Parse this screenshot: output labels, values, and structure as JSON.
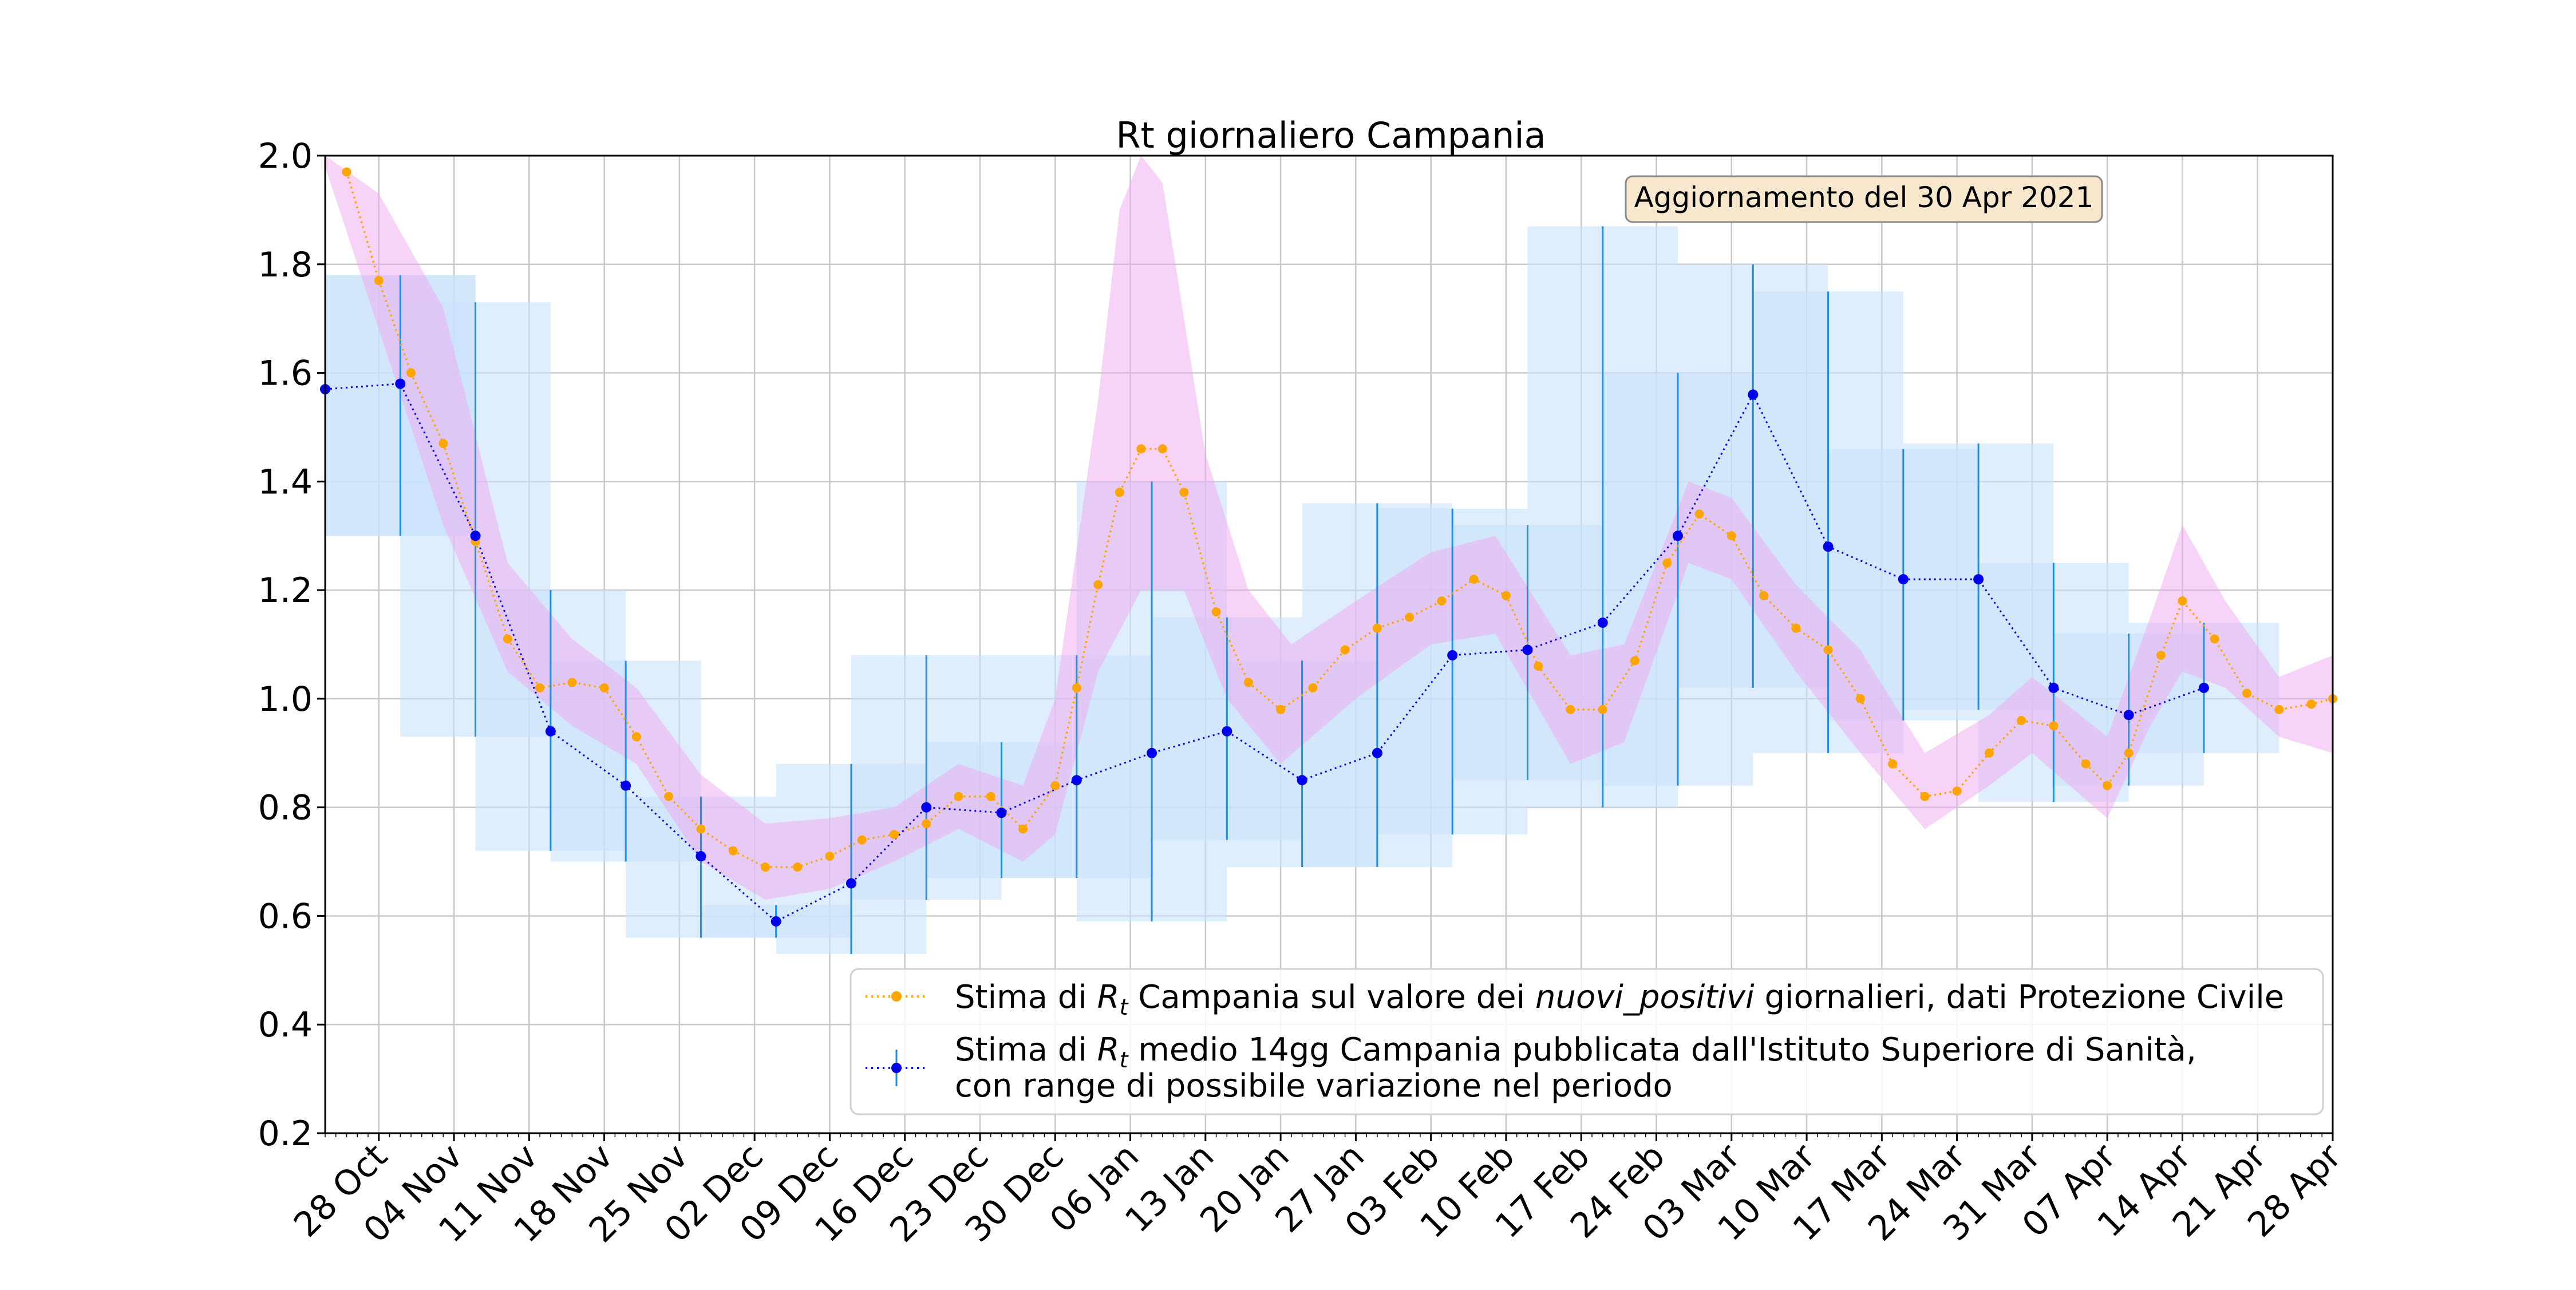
{
  "chart_data": {
    "type": "line",
    "title": "Rt giornaliero Campania",
    "annotation": "Aggiornamento del 30 Apr 2021",
    "xlabel": "",
    "ylabel": "",
    "x_range": [
      "2020-10-23",
      "2021-04-28"
    ],
    "ylim": [
      0.2,
      2.0
    ],
    "grid": true,
    "legend_position": "lower-right",
    "x_tick_labels": [
      "28 Oct",
      "04 Nov",
      "11 Nov",
      "18 Nov",
      "25 Nov",
      "02 Dec",
      "09 Dec",
      "16 Dec",
      "23 Dec",
      "30 Dec",
      "06 Jan",
      "13 Jan",
      "20 Jan",
      "27 Jan",
      "03 Feb",
      "10 Feb",
      "17 Feb",
      "24 Feb",
      "03 Mar",
      "10 Mar",
      "17 Mar",
      "24 Mar",
      "31 Mar",
      "07 Apr",
      "14 Apr",
      "21 Apr",
      "28 Apr"
    ],
    "x_tick_dates": [
      "2020-10-28",
      "2020-11-04",
      "2020-11-11",
      "2020-11-18",
      "2020-11-25",
      "2020-12-02",
      "2020-12-09",
      "2020-12-16",
      "2020-12-23",
      "2020-12-30",
      "2021-01-06",
      "2021-01-13",
      "2021-01-20",
      "2021-01-27",
      "2021-02-03",
      "2021-02-10",
      "2021-02-17",
      "2021-02-24",
      "2021-03-03",
      "2021-03-10",
      "2021-03-17",
      "2021-03-24",
      "2021-03-31",
      "2021-04-07",
      "2021-04-14",
      "2021-04-21",
      "2021-04-28"
    ],
    "y_tick_labels": [
      "0.2",
      "0.4",
      "0.6",
      "0.8",
      "1.0",
      "1.2",
      "1.4",
      "1.6",
      "1.8",
      "2.0"
    ],
    "colors": {
      "daily": "#ffa500",
      "band": "#f0a8f0",
      "iss": "#0000ee",
      "iss_range": "#1e8ee6",
      "iss_box": "#c9e2fb",
      "grid": "#c8c8c8",
      "note_bg": "#f6e7cd",
      "note_border": "#8a8a8a"
    },
    "series": [
      {
        "name": "daily",
        "legend": {
          "before": "Stima di ",
          "r": "R",
          "sub": "t",
          "mid": " Campania sul valore dei ",
          "italic": "nuovi_positivi",
          "after": " giornalieri, dati Protezione Civile"
        },
        "style": "dotted-line-with-markers",
        "points": [
          [
            "2020-10-25",
            1.97
          ],
          [
            "2020-10-28",
            1.77
          ],
          [
            "2020-10-31",
            1.6
          ],
          [
            "2020-11-03",
            1.47
          ],
          [
            "2020-11-06",
            1.29
          ],
          [
            "2020-11-09",
            1.11
          ],
          [
            "2020-11-12",
            1.02
          ],
          [
            "2020-11-15",
            1.03
          ],
          [
            "2020-11-18",
            1.02
          ],
          [
            "2020-11-21",
            0.93
          ],
          [
            "2020-11-24",
            0.82
          ],
          [
            "2020-11-27",
            0.76
          ],
          [
            "2020-11-30",
            0.72
          ],
          [
            "2020-12-03",
            0.69
          ],
          [
            "2020-12-06",
            0.69
          ],
          [
            "2020-12-09",
            0.71
          ],
          [
            "2020-12-12",
            0.74
          ],
          [
            "2020-12-15",
            0.75
          ],
          [
            "2020-12-18",
            0.77
          ],
          [
            "2020-12-21",
            0.82
          ],
          [
            "2020-12-24",
            0.82
          ],
          [
            "2020-12-27",
            0.76
          ],
          [
            "2020-12-30",
            0.84
          ],
          [
            "2021-01-01",
            1.02
          ],
          [
            "2021-01-03",
            1.21
          ],
          [
            "2021-01-05",
            1.38
          ],
          [
            "2021-01-07",
            1.46
          ],
          [
            "2021-01-09",
            1.46
          ],
          [
            "2021-01-11",
            1.38
          ],
          [
            "2021-01-14",
            1.16
          ],
          [
            "2021-01-17",
            1.03
          ],
          [
            "2021-01-20",
            0.98
          ],
          [
            "2021-01-23",
            1.02
          ],
          [
            "2021-01-26",
            1.09
          ],
          [
            "2021-01-29",
            1.13
          ],
          [
            "2021-02-01",
            1.15
          ],
          [
            "2021-02-04",
            1.18
          ],
          [
            "2021-02-07",
            1.22
          ],
          [
            "2021-02-10",
            1.19
          ],
          [
            "2021-02-13",
            1.06
          ],
          [
            "2021-02-16",
            0.98
          ],
          [
            "2021-02-19",
            0.98
          ],
          [
            "2021-02-22",
            1.07
          ],
          [
            "2021-02-25",
            1.25
          ],
          [
            "2021-02-28",
            1.34
          ],
          [
            "2021-03-03",
            1.3
          ],
          [
            "2021-03-06",
            1.19
          ],
          [
            "2021-03-09",
            1.13
          ],
          [
            "2021-03-12",
            1.09
          ],
          [
            "2021-03-15",
            1.0
          ],
          [
            "2021-03-18",
            0.88
          ],
          [
            "2021-03-21",
            0.82
          ],
          [
            "2021-03-24",
            0.83
          ],
          [
            "2021-03-27",
            0.9
          ],
          [
            "2021-03-30",
            0.96
          ],
          [
            "2021-04-02",
            0.95
          ],
          [
            "2021-04-05",
            0.88
          ],
          [
            "2021-04-07",
            0.84
          ],
          [
            "2021-04-09",
            0.9
          ],
          [
            "2021-04-12",
            1.08
          ],
          [
            "2021-04-14",
            1.18
          ],
          [
            "2021-04-17",
            1.11
          ],
          [
            "2021-04-20",
            1.01
          ],
          [
            "2021-04-23",
            0.98
          ],
          [
            "2021-04-26",
            0.99
          ],
          [
            "2021-04-28",
            1.0
          ]
        ],
        "band_upper": [
          [
            "2020-10-23",
            2.0
          ],
          [
            "2020-10-28",
            1.93
          ],
          [
            "2020-11-03",
            1.72
          ],
          [
            "2020-11-09",
            1.25
          ],
          [
            "2020-11-15",
            1.11
          ],
          [
            "2020-11-21",
            1.02
          ],
          [
            "2020-11-27",
            0.86
          ],
          [
            "2020-12-03",
            0.77
          ],
          [
            "2020-12-09",
            0.78
          ],
          [
            "2020-12-15",
            0.8
          ],
          [
            "2020-12-21",
            0.88
          ],
          [
            "2020-12-27",
            0.84
          ],
          [
            "2020-12-30",
            1.0
          ],
          [
            "2021-01-03",
            1.55
          ],
          [
            "2021-01-05",
            1.9
          ],
          [
            "2021-01-07",
            2.0
          ],
          [
            "2021-01-09",
            1.95
          ],
          [
            "2021-01-13",
            1.45
          ],
          [
            "2021-01-17",
            1.2
          ],
          [
            "2021-01-21",
            1.1
          ],
          [
            "2021-01-27",
            1.18
          ],
          [
            "2021-02-03",
            1.27
          ],
          [
            "2021-02-09",
            1.3
          ],
          [
            "2021-02-16",
            1.08
          ],
          [
            "2021-02-21",
            1.1
          ],
          [
            "2021-02-27",
            1.4
          ],
          [
            "2021-03-03",
            1.37
          ],
          [
            "2021-03-09",
            1.21
          ],
          [
            "2021-03-15",
            1.09
          ],
          [
            "2021-03-21",
            0.9
          ],
          [
            "2021-03-27",
            0.97
          ],
          [
            "2021-03-31",
            1.04
          ],
          [
            "2021-04-07",
            0.93
          ],
          [
            "2021-04-11",
            1.15
          ],
          [
            "2021-04-14",
            1.32
          ],
          [
            "2021-04-18",
            1.18
          ],
          [
            "2021-04-23",
            1.04
          ],
          [
            "2021-04-28",
            1.08
          ]
        ],
        "band_lower": [
          [
            "2020-10-23",
            1.98
          ],
          [
            "2020-10-28",
            1.68
          ],
          [
            "2020-11-03",
            1.32
          ],
          [
            "2020-11-09",
            1.05
          ],
          [
            "2020-11-15",
            0.95
          ],
          [
            "2020-11-21",
            0.88
          ],
          [
            "2020-11-27",
            0.7
          ],
          [
            "2020-12-03",
            0.63
          ],
          [
            "2020-12-09",
            0.65
          ],
          [
            "2020-12-15",
            0.7
          ],
          [
            "2020-12-21",
            0.76
          ],
          [
            "2020-12-27",
            0.7
          ],
          [
            "2020-12-30",
            0.75
          ],
          [
            "2021-01-03",
            1.05
          ],
          [
            "2021-01-07",
            1.2
          ],
          [
            "2021-01-11",
            1.2
          ],
          [
            "2021-01-15",
            1.0
          ],
          [
            "2021-01-20",
            0.88
          ],
          [
            "2021-01-27",
            1.0
          ],
          [
            "2021-02-03",
            1.1
          ],
          [
            "2021-02-09",
            1.12
          ],
          [
            "2021-02-16",
            0.88
          ],
          [
            "2021-02-21",
            0.92
          ],
          [
            "2021-02-27",
            1.25
          ],
          [
            "2021-03-03",
            1.22
          ],
          [
            "2021-03-09",
            1.05
          ],
          [
            "2021-03-15",
            0.9
          ],
          [
            "2021-03-21",
            0.76
          ],
          [
            "2021-03-27",
            0.84
          ],
          [
            "2021-03-31",
            0.9
          ],
          [
            "2021-04-07",
            0.78
          ],
          [
            "2021-04-11",
            0.95
          ],
          [
            "2021-04-14",
            1.05
          ],
          [
            "2021-04-18",
            1.02
          ],
          [
            "2021-04-23",
            0.93
          ],
          [
            "2021-04-28",
            0.9
          ]
        ]
      },
      {
        "name": "iss",
        "legend": {
          "before": "Stima di ",
          "r": "R",
          "sub": "t",
          "line1_after": " medio 14gg Campania pubblicata dall'Istituto Superiore di Sanità,",
          "line2": "con range di possibile variazione nel periodo"
        },
        "style": "dotted-line-with-markers-and-ranges",
        "points": [
          {
            "date": "2020-10-23",
            "value": 1.57,
            "low": 1.3,
            "high": 1.78,
            "range_start": "2020-10-23",
            "range_end": "2020-11-06"
          },
          {
            "date": "2020-10-30",
            "value": 1.58,
            "low": 1.3,
            "high": 1.78,
            "range_start": "2020-10-23",
            "range_end": "2020-11-06"
          },
          {
            "date": "2020-11-06",
            "value": 1.3,
            "low": 0.93,
            "high": 1.73,
            "range_start": "2020-10-30",
            "range_end": "2020-11-13"
          },
          {
            "date": "2020-11-13",
            "value": 0.94,
            "low": 0.72,
            "high": 1.2,
            "range_start": "2020-11-06",
            "range_end": "2020-11-20"
          },
          {
            "date": "2020-11-20",
            "value": 0.84,
            "low": 0.7,
            "high": 1.07,
            "range_start": "2020-11-13",
            "range_end": "2020-11-27"
          },
          {
            "date": "2020-11-27",
            "value": 0.71,
            "low": 0.56,
            "high": 0.82,
            "range_start": "2020-11-20",
            "range_end": "2020-12-04"
          },
          {
            "date": "2020-12-04",
            "value": 0.59,
            "low": 0.56,
            "high": 0.62,
            "range_start": "2020-11-27",
            "range_end": "2020-12-11"
          },
          {
            "date": "2020-12-11",
            "value": 0.66,
            "low": 0.53,
            "high": 0.88,
            "range_start": "2020-12-04",
            "range_end": "2020-12-18"
          },
          {
            "date": "2020-12-18",
            "value": 0.8,
            "low": 0.63,
            "high": 1.08,
            "range_start": "2020-12-11",
            "range_end": "2020-12-25"
          },
          {
            "date": "2020-12-25",
            "value": 0.79,
            "low": 0.67,
            "high": 0.92,
            "range_start": "2020-12-18",
            "range_end": "2021-01-01"
          },
          {
            "date": "2021-01-01",
            "value": 0.85,
            "low": 0.67,
            "high": 1.08,
            "range_start": "2020-12-25",
            "range_end": "2021-01-08"
          },
          {
            "date": "2021-01-08",
            "value": 0.9,
            "low": 0.59,
            "high": 1.4,
            "range_start": "2021-01-01",
            "range_end": "2021-01-15"
          },
          {
            "date": "2021-01-15",
            "value": 0.94,
            "low": 0.74,
            "high": 1.15,
            "range_start": "2021-01-08",
            "range_end": "2021-01-22"
          },
          {
            "date": "2021-01-22",
            "value": 0.85,
            "low": 0.69,
            "high": 1.07,
            "range_start": "2021-01-15",
            "range_end": "2021-01-29"
          },
          {
            "date": "2021-01-29",
            "value": 0.9,
            "low": 0.69,
            "high": 1.36,
            "range_start": "2021-01-22",
            "range_end": "2021-02-05"
          },
          {
            "date": "2021-02-05",
            "value": 1.08,
            "low": 0.75,
            "high": 1.35,
            "range_start": "2021-01-29",
            "range_end": "2021-02-12"
          },
          {
            "date": "2021-02-12",
            "value": 1.09,
            "low": 0.85,
            "high": 1.32,
            "range_start": "2021-02-05",
            "range_end": "2021-02-19"
          },
          {
            "date": "2021-02-19",
            "value": 1.14,
            "low": 0.8,
            "high": 1.87,
            "range_start": "2021-02-12",
            "range_end": "2021-02-26"
          },
          {
            "date": "2021-02-26",
            "value": 1.3,
            "low": 0.84,
            "high": 1.6,
            "range_start": "2021-02-19",
            "range_end": "2021-03-05"
          },
          {
            "date": "2021-03-05",
            "value": 1.56,
            "low": 1.02,
            "high": 1.8,
            "range_start": "2021-02-26",
            "range_end": "2021-03-12"
          },
          {
            "date": "2021-03-12",
            "value": 1.28,
            "low": 0.9,
            "high": 1.75,
            "range_start": "2021-03-05",
            "range_end": "2021-03-19"
          },
          {
            "date": "2021-03-19",
            "value": 1.22,
            "low": 0.96,
            "high": 1.46,
            "range_start": "2021-03-12",
            "range_end": "2021-03-26"
          },
          {
            "date": "2021-03-26",
            "value": 1.22,
            "low": 0.98,
            "high": 1.47,
            "range_start": "2021-03-19",
            "range_end": "2021-04-02"
          },
          {
            "date": "2021-04-02",
            "value": 1.02,
            "low": 0.81,
            "high": 1.25,
            "range_start": "2021-03-26",
            "range_end": "2021-04-09"
          },
          {
            "date": "2021-04-09",
            "value": 0.97,
            "low": 0.84,
            "high": 1.12,
            "range_start": "2021-04-02",
            "range_end": "2021-04-16"
          },
          {
            "date": "2021-04-16",
            "value": 1.02,
            "low": 0.9,
            "high": 1.14,
            "range_start": "2021-04-09",
            "range_end": "2021-04-23"
          }
        ]
      }
    ]
  }
}
